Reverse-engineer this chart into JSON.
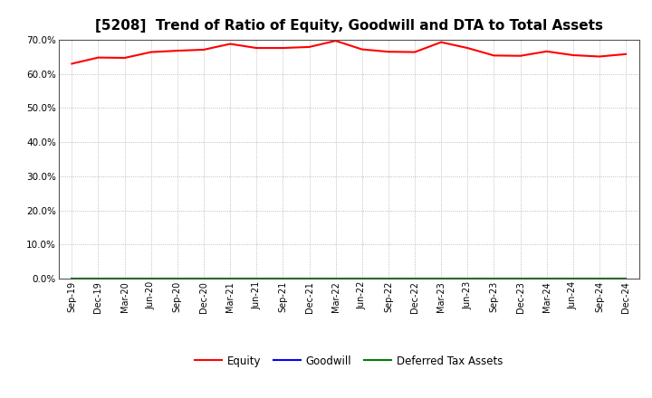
{
  "title": "[5208]  Trend of Ratio of Equity, Goodwill and DTA to Total Assets",
  "x_labels": [
    "Sep-19",
    "Dec-19",
    "Mar-20",
    "Jun-20",
    "Sep-20",
    "Dec-20",
    "Mar-21",
    "Jun-21",
    "Sep-21",
    "Dec-21",
    "Mar-22",
    "Jun-22",
    "Sep-22",
    "Dec-22",
    "Mar-23",
    "Jun-23",
    "Sep-23",
    "Dec-23",
    "Mar-24",
    "Jun-24",
    "Sep-24",
    "Dec-24"
  ],
  "equity": [
    0.63,
    0.648,
    0.647,
    0.664,
    0.668,
    0.671,
    0.688,
    0.676,
    0.676,
    0.679,
    0.697,
    0.672,
    0.665,
    0.664,
    0.693,
    0.676,
    0.654,
    0.653,
    0.666,
    0.655,
    0.651,
    0.658
  ],
  "goodwill": [
    0.0,
    0.0,
    0.0,
    0.0,
    0.0,
    0.0,
    0.0,
    0.0,
    0.0,
    0.0,
    0.0,
    0.0,
    0.0,
    0.0,
    0.0,
    0.0,
    0.0,
    0.0,
    0.0,
    0.0,
    0.0,
    0.0
  ],
  "dta": [
    0.0,
    0.0,
    0.0,
    0.0,
    0.0,
    0.0,
    0.0,
    0.0,
    0.0,
    0.0,
    0.0,
    0.0,
    0.0,
    0.0,
    0.0,
    0.0,
    0.0,
    0.0,
    0.0,
    0.0,
    0.0,
    0.0
  ],
  "equity_color": "#FF0000",
  "goodwill_color": "#0000FF",
  "dta_color": "#008000",
  "ylim": [
    0.0,
    0.7
  ],
  "yticks": [
    0.0,
    0.1,
    0.2,
    0.3,
    0.4,
    0.5,
    0.6,
    0.7
  ],
  "background_color": "#FFFFFF",
  "plot_bg_color": "#FFFFFF",
  "grid_color": "#AAAAAA",
  "title_fontsize": 11,
  "tick_fontsize": 7,
  "legend_labels": [
    "Equity",
    "Goodwill",
    "Deferred Tax Assets"
  ]
}
